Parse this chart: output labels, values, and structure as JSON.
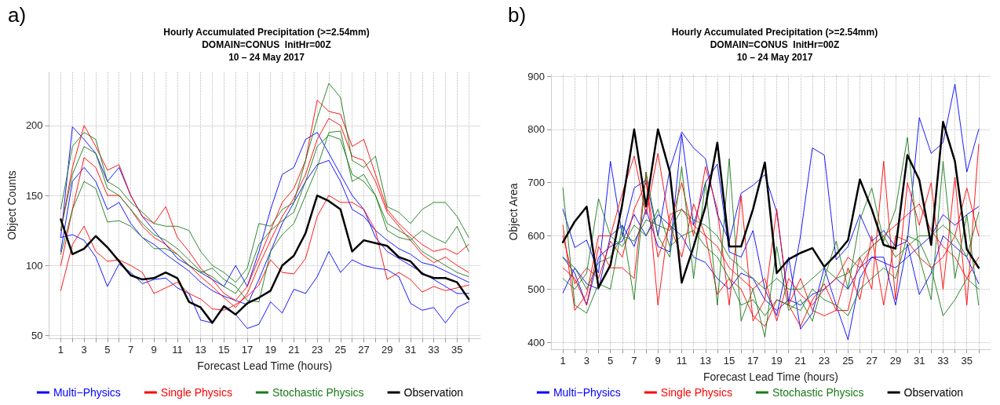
{
  "chart_data": [
    {
      "type": "line",
      "title": "Hourly Accumulated Precipitation (>=2.54mm)",
      "subtitle": "DOMAIN=CONUS  InitHr=00Z\n10 – 24 May 2017",
      "xlabel": "Forecast Lead Time (hours)",
      "ylabel": "Object Counts",
      "annotations": [
        "a)"
      ],
      "x": [
        1,
        2,
        3,
        4,
        5,
        6,
        7,
        8,
        9,
        10,
        11,
        12,
        13,
        14,
        15,
        16,
        17,
        18,
        19,
        20,
        21,
        22,
        23,
        24,
        25,
        26,
        27,
        28,
        29,
        30,
        31,
        32,
        33,
        34,
        35,
        36
      ],
      "xlim": [
        0,
        37
      ],
      "xticks": [
        1,
        {
          "value": 2,
          "label": null
        },
        3,
        {
          "value": 4,
          "label": null
        },
        5,
        {
          "value": 6,
          "label": null
        },
        7,
        {
          "value": 8,
          "label": null
        },
        9,
        {
          "value": 10,
          "label": null
        },
        11,
        {
          "value": 12,
          "label": null
        },
        13,
        {
          "value": 14,
          "label": null
        },
        15,
        {
          "value": 16,
          "label": null
        },
        17,
        {
          "value": 18,
          "label": null
        },
        19,
        {
          "value": 20,
          "label": null
        },
        21,
        {
          "value": 22,
          "label": null
        },
        23,
        {
          "value": 24,
          "label": null
        },
        25,
        {
          "value": 26,
          "label": null
        },
        27,
        {
          "value": 28,
          "label": null
        },
        29,
        {
          "value": 30,
          "label": null
        },
        31,
        {
          "value": 32,
          "label": null
        },
        33,
        {
          "value": 34,
          "label": null
        },
        35,
        {
          "value": 36,
          "label": null
        }
      ],
      "ylim": [
        48,
        238
      ],
      "yticks": [
        50,
        100,
        150,
        200
      ],
      "grid": true,
      "legend": "bottom",
      "marker": "none",
      "line_style": "solid",
      "series": [
        {
          "name": "Multi−Physics",
          "color": "#0000ff",
          "values": [
            120,
            199,
            190,
            180,
            160,
            170,
            150,
            135,
            125,
            115,
            105,
            100,
            95,
            90,
            85,
            100,
            85,
            110,
            140,
            165,
            170,
            190,
            195,
            180,
            165,
            150,
            140,
            120,
            110,
            105,
            100,
            95,
            90,
            85,
            80,
            80
          ]
        },
        {
          "color": "#0000ff",
          "values": [
            120,
            122,
            118,
            106,
            85,
            101,
            95,
            87,
            90,
            91,
            84,
            80,
            61,
            59,
            70,
            65,
            55,
            58,
            74,
            66,
            83,
            80,
            92,
            110,
            95,
            104,
            100,
            98,
            97,
            92,
            73,
            68,
            70,
            59,
            70,
            74
          ]
        },
        {
          "color": "#0000ff",
          "values": [
            110,
            160,
            170,
            160,
            140,
            145,
            130,
            120,
            115,
            108,
            102,
            96,
            88,
            82,
            78,
            75,
            72,
            90,
            110,
            130,
            145,
            160,
            172,
            175,
            160,
            140,
            135,
            125,
            118,
            112,
            108,
            102,
            100,
            96,
            92,
            88
          ]
        },
        {
          "name": "Single Physics",
          "color": "#ff0000",
          "values": [
            82,
            115,
            128,
            110,
            103,
            104,
            100,
            95,
            80,
            84,
            88,
            80,
            76,
            69,
            68,
            72,
            78,
            86,
            104,
            95,
            94,
            105,
            135,
            150,
            145,
            145,
            140,
            125,
            90,
            95,
            90,
            81,
            85,
            82,
            84,
            86
          ]
        },
        {
          "color": "#ff0000",
          "values": [
            125,
            170,
            200,
            185,
            168,
            172,
            150,
            135,
            130,
            142,
            120,
            110,
            98,
            90,
            80,
            75,
            85,
            105,
            125,
            145,
            155,
            175,
            218,
            210,
            208,
            185,
            190,
            165,
            140,
            130,
            122,
            115,
            110,
            112,
            108,
            115
          ]
        },
        {
          "color": "#ff0000",
          "values": [
            100,
            140,
            177,
            170,
            150,
            150,
            140,
            128,
            120,
            115,
            108,
            100,
            92,
            85,
            77,
            70,
            80,
            100,
            118,
            135,
            148,
            165,
            190,
            205,
            200,
            178,
            175,
            160,
            138,
            128,
            118,
            108,
            102,
            106,
            100,
            95
          ]
        },
        {
          "name": "Stochastic Physics",
          "color": "#1a7a1a",
          "values": [
            140,
            185,
            195,
            190,
            160,
            155,
            145,
            138,
            130,
            128,
            128,
            125,
            110,
            100,
            95,
            88,
            98,
            130,
            128,
            140,
            145,
            175,
            205,
            230,
            220,
            175,
            170,
            178,
            142,
            138,
            130,
            140,
            145,
            145,
            135,
            120
          ]
        },
        {
          "color": "#1a7a1a",
          "values": [
            108,
            140,
            160,
            155,
            131,
            132,
            128,
            120,
            112,
            112,
            108,
            100,
            95,
            98,
            90,
            85,
            75,
            74,
            110,
            122,
            130,
            150,
            170,
            195,
            196,
            160,
            165,
            150,
            125,
            120,
            118,
            125,
            120,
            116,
            128,
            110
          ]
        },
        {
          "color": "#1a7a1a",
          "values": [
            125,
            165,
            185,
            180,
            155,
            150,
            140,
            130,
            122,
            118,
            112,
            104,
            96,
            92,
            85,
            80,
            92,
            115,
            125,
            132,
            138,
            160,
            185,
            193,
            190,
            165,
            160,
            150,
            130,
            125,
            120,
            110,
            105,
            100,
            95,
            92
          ]
        },
        {
          "name": "Observation",
          "color": "#000000",
          "values": [
            133,
            108,
            112,
            121,
            113,
            103,
            93,
            90,
            91,
            95,
            91,
            74,
            70,
            59,
            71,
            65,
            73,
            77,
            82,
            100,
            107,
            123,
            150,
            146,
            140,
            110,
            118,
            116,
            114,
            106,
            103,
            94,
            91,
            91,
            88,
            76
          ]
        }
      ]
    },
    {
      "type": "line",
      "title": "Hourly Accumulated Precipitation (>=2.54mm)",
      "subtitle": "DOMAIN=CONUS  InitHr=00Z\n10 – 24 May 2017",
      "xlabel": "Forecast Lead Time (hours)",
      "ylabel": "Object Area",
      "annotations": [
        "b)"
      ],
      "x": [
        1,
        2,
        3,
        4,
        5,
        6,
        7,
        8,
        9,
        10,
        11,
        12,
        13,
        14,
        15,
        16,
        17,
        18,
        19,
        20,
        21,
        22,
        23,
        24,
        25,
        26,
        27,
        28,
        29,
        30,
        31,
        32,
        33,
        34,
        35,
        36
      ],
      "xlim": [
        0,
        37
      ],
      "xticks": [
        1,
        {
          "value": 2,
          "label": null
        },
        3,
        {
          "value": 4,
          "label": null
        },
        5,
        {
          "value": 6,
          "label": null
        },
        7,
        {
          "value": 8,
          "label": null
        },
        9,
        {
          "value": 10,
          "label": null
        },
        11,
        {
          "value": 12,
          "label": null
        },
        13,
        {
          "value": 14,
          "label": null
        },
        15,
        {
          "value": 16,
          "label": null
        },
        17,
        {
          "value": 18,
          "label": null
        },
        19,
        {
          "value": 20,
          "label": null
        },
        21,
        {
          "value": 22,
          "label": null
        },
        23,
        {
          "value": 24,
          "label": null
        },
        25,
        {
          "value": 26,
          "label": null
        },
        27,
        {
          "value": 28,
          "label": null
        },
        29,
        {
          "value": 30,
          "label": null
        },
        31,
        {
          "value": 32,
          "label": null
        },
        33,
        {
          "value": 34,
          "label": null
        },
        35,
        {
          "value": 36,
          "label": null
        }
      ],
      "ylim": [
        387,
        903
      ],
      "yticks": [
        400,
        500,
        600,
        700,
        800,
        900
      ],
      "grid": true,
      "legend": "bottom",
      "marker": "none",
      "line_style": "solid",
      "series": [
        {
          "name": "Multi−Physics",
          "color": "#0000ff",
          "values": [
            650,
            578,
            592,
            530,
            740,
            600,
            690,
            705,
            600,
            725,
            795,
            765,
            745,
            640,
            590,
            680,
            695,
            715,
            645,
            475,
            600,
            765,
            752,
            555,
            580,
            640,
            590,
            610,
            580,
            590,
            822,
            755,
            775,
            885,
            720,
            800
          ]
        },
        {
          "color": "#0000ff",
          "values": [
            493,
            540,
            510,
            500,
            600,
            620,
            580,
            650,
            580,
            570,
            790,
            620,
            700,
            735,
            570,
            560,
            610,
            500,
            450,
            560,
            425,
            455,
            540,
            470,
            405,
            520,
            560,
            560,
            470,
            585,
            490,
            530,
            600,
            580,
            560,
            510
          ]
        },
        {
          "color": "#0000ff",
          "values": [
            560,
            530,
            470,
            560,
            580,
            590,
            640,
            600,
            640,
            620,
            600,
            560,
            550,
            520,
            500,
            530,
            520,
            480,
            460,
            480,
            470,
            490,
            500,
            520,
            500,
            540,
            560,
            550,
            540,
            560,
            580,
            600,
            640,
            620,
            640,
            655
          ]
        },
        {
          "name": "Single Physics",
          "color": "#ff0000",
          "values": [
            620,
            460,
            490,
            600,
            600,
            680,
            750,
            640,
            755,
            620,
            700,
            600,
            730,
            650,
            470,
            675,
            440,
            480,
            650,
            470,
            520,
            460,
            450,
            460,
            460,
            560,
            500,
            740,
            480,
            700,
            620,
            700,
            500,
            710,
            470,
            772
          ]
        },
        {
          "color": "#ff0000",
          "values": [
            540,
            520,
            470,
            580,
            540,
            540,
            520,
            720,
            470,
            640,
            650,
            620,
            600,
            490,
            520,
            500,
            450,
            430,
            480,
            470,
            430,
            480,
            510,
            460,
            540,
            480,
            600,
            470,
            600,
            590,
            560,
            540,
            560,
            600,
            690,
            600
          ]
        },
        {
          "color": "#ff0000",
          "values": [
            600,
            510,
            540,
            520,
            590,
            560,
            650,
            700,
            560,
            620,
            560,
            660,
            600,
            580,
            540,
            520,
            500,
            520,
            440,
            520,
            490,
            470,
            500,
            520,
            560,
            540,
            580,
            600,
            620,
            640,
            660,
            610,
            580,
            560,
            520,
            560
          ]
        },
        {
          "name": "Stochastic Physics",
          "color": "#1a7a1a",
          "values": [
            690,
            470,
            455,
            510,
            500,
            620,
            480,
            720,
            600,
            560,
            730,
            520,
            700,
            470,
            745,
            440,
            500,
            410,
            580,
            460,
            480,
            440,
            520,
            590,
            500,
            630,
            690,
            590,
            650,
            785,
            560,
            480,
            740,
            520,
            640,
            470
          ]
        },
        {
          "color": "#1a7a1a",
          "values": [
            520,
            500,
            530,
            670,
            600,
            580,
            620,
            600,
            650,
            580,
            600,
            610,
            580,
            560,
            520,
            470,
            480,
            450,
            480,
            470,
            460,
            500,
            480,
            470,
            450,
            500,
            520,
            540,
            520,
            600,
            590,
            540,
            450,
            480,
            520,
            500
          ]
        },
        {
          "color": "#1a7a1a",
          "values": [
            560,
            540,
            500,
            550,
            560,
            600,
            590,
            630,
            620,
            610,
            650,
            630,
            620,
            600,
            560,
            540,
            520,
            500,
            520,
            500,
            500,
            520,
            540,
            520,
            530,
            560,
            580,
            600,
            560,
            580,
            600,
            600,
            620,
            600,
            560,
            644
          ]
        },
        {
          "name": "Observation",
          "color": "#000000",
          "values": [
            588,
            627,
            655,
            503,
            545,
            660,
            800,
            655,
            800,
            720,
            512,
            580,
            655,
            775,
            580,
            580,
            650,
            738,
            530,
            556,
            568,
            577,
            542,
            565,
            592,
            706,
            650,
            583,
            576,
            752,
            705,
            583,
            814,
            740,
            575,
            540
          ]
        }
      ]
    }
  ]
}
